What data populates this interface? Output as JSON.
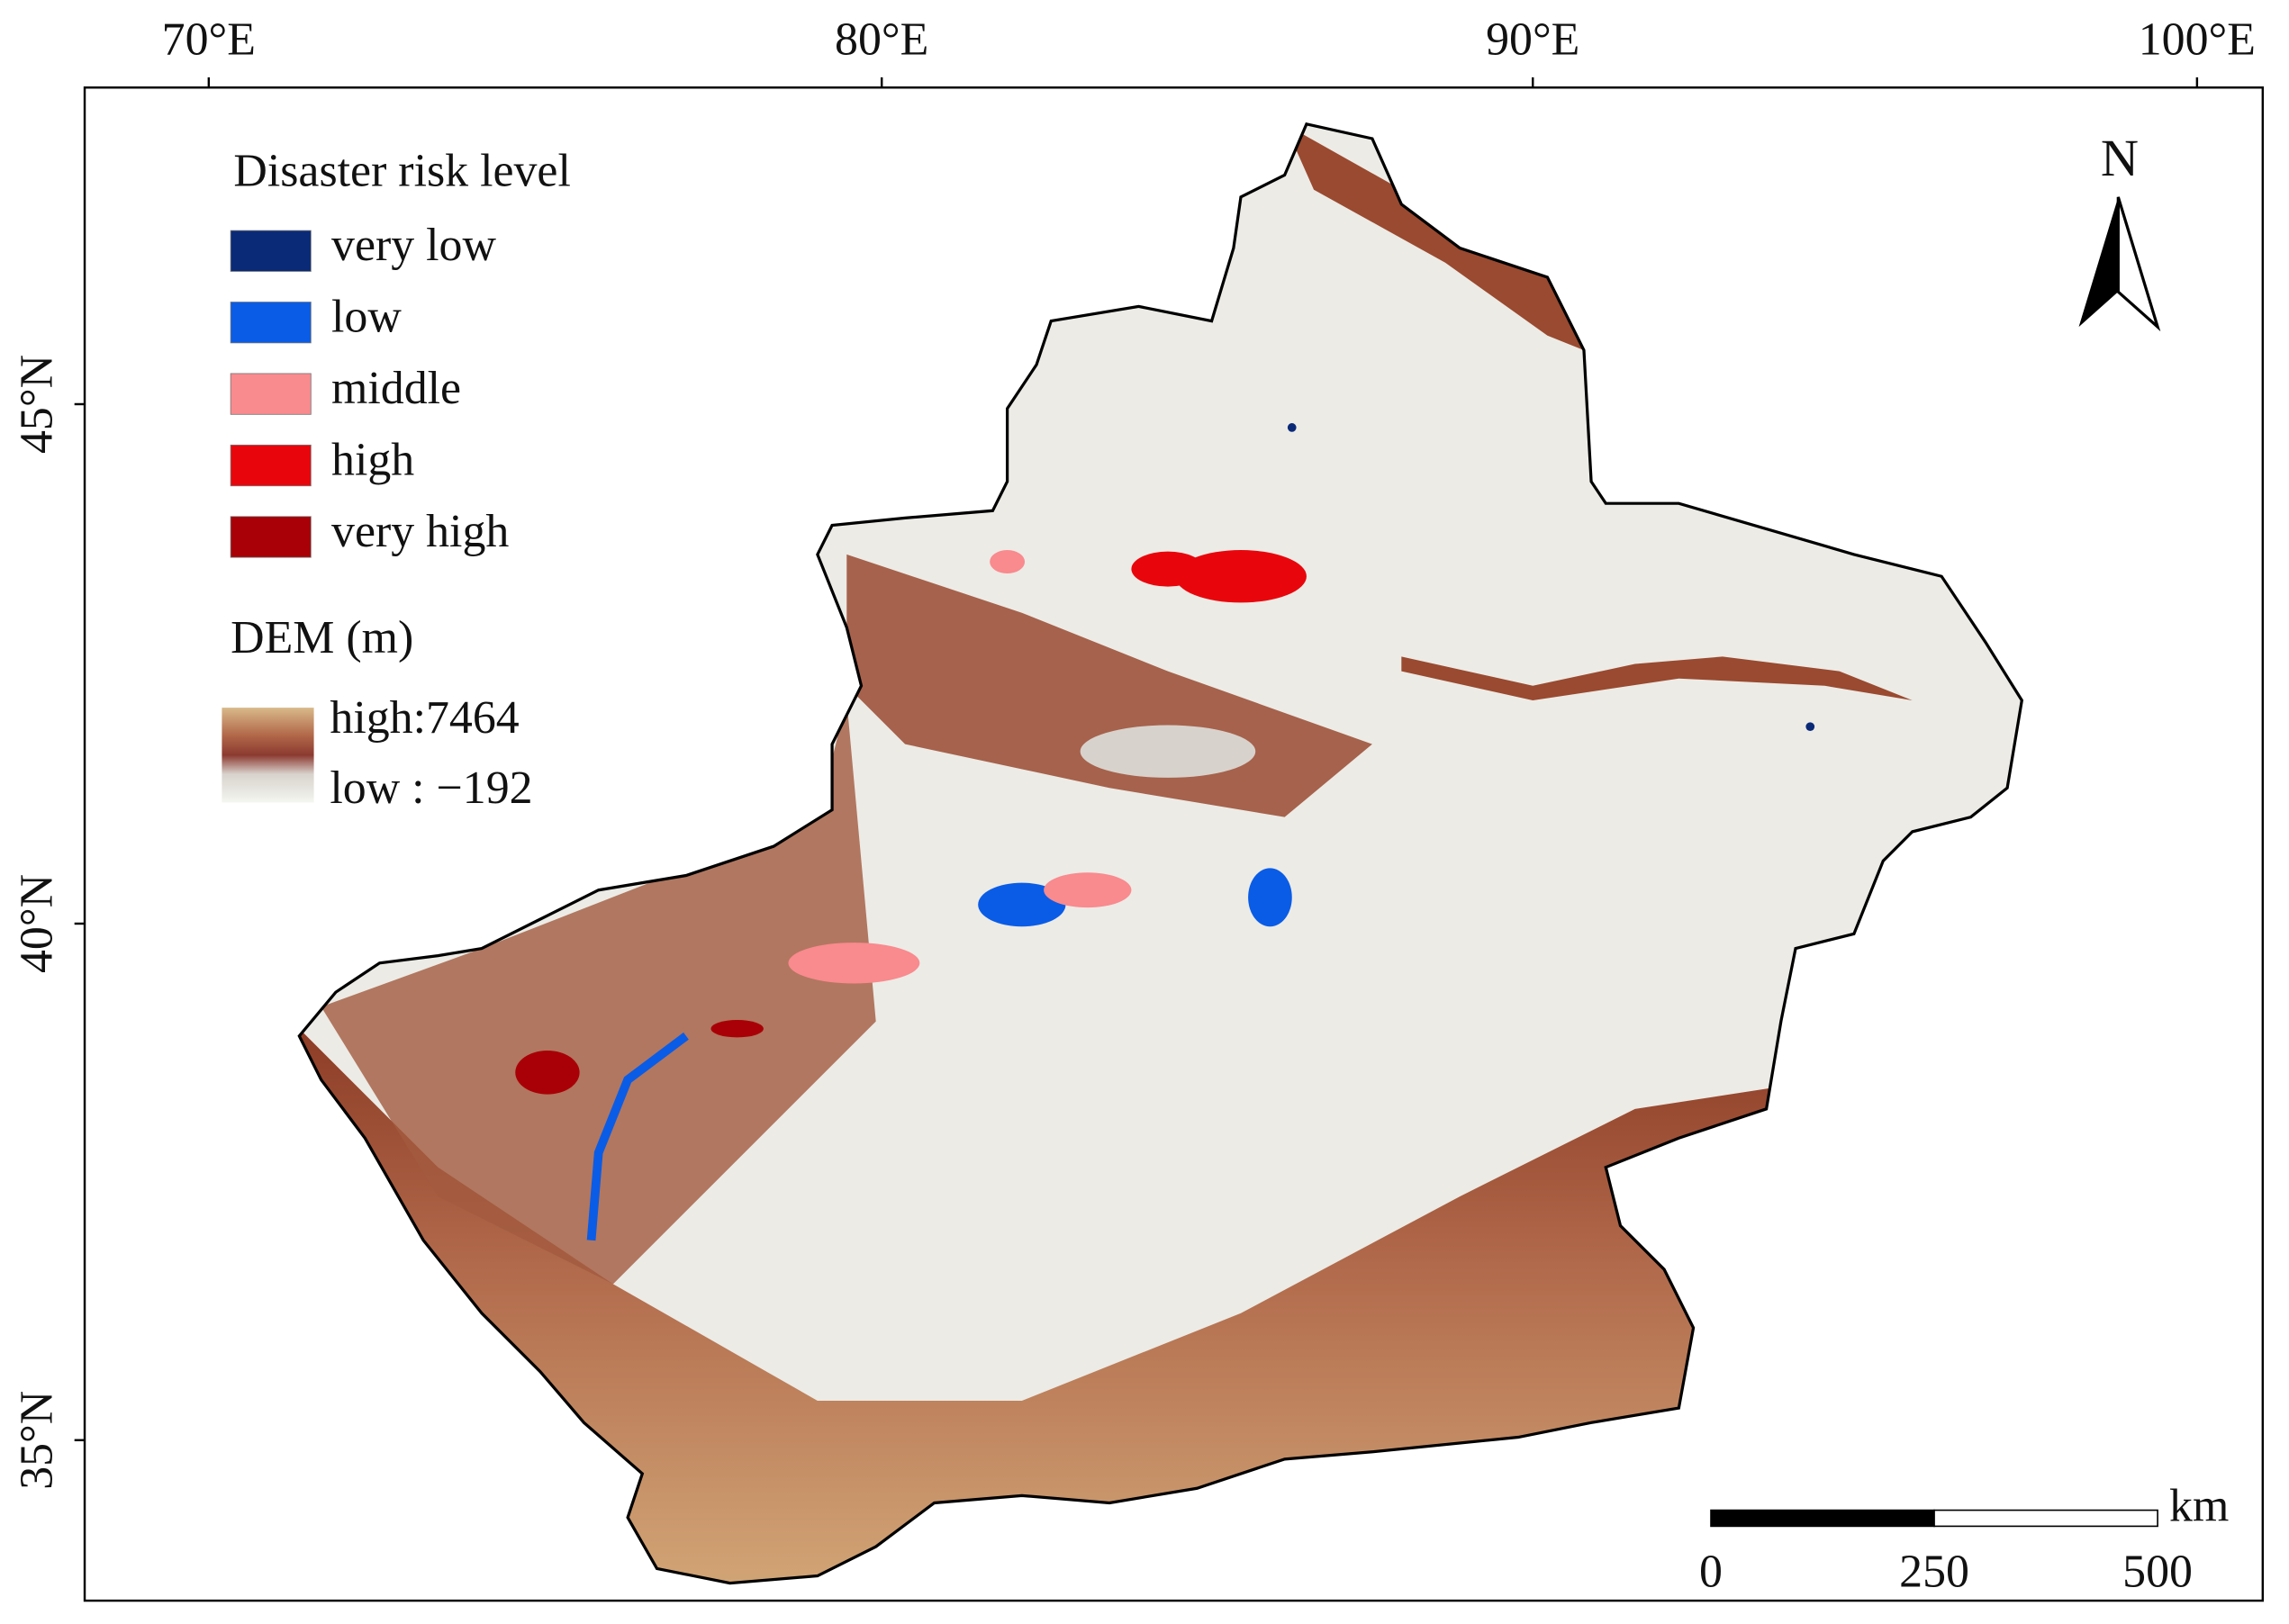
{
  "map": {
    "longitude_labels": [
      "70°E",
      "80°E",
      "90°E",
      "100°E"
    ],
    "latitude_labels": [
      "45°N",
      "40°N",
      "35°N"
    ],
    "risk_legend": {
      "title": "Disaster risk level",
      "items": [
        {
          "label": "very low",
          "color": "#0a2a78"
        },
        {
          "label": "low",
          "color": "#0a5ce6"
        },
        {
          "label": "middle",
          "color": "#f98a8e"
        },
        {
          "label": "high",
          "color": "#e8060c"
        },
        {
          "label": "very high",
          "color": "#a80006"
        }
      ]
    },
    "dem_legend": {
      "title": "DEM (m)",
      "high": "high:7464",
      "low": "low : −192"
    },
    "north": "N",
    "scale_bar": {
      "unit": "km",
      "ticks": [
        0,
        250,
        500
      ]
    }
  }
}
